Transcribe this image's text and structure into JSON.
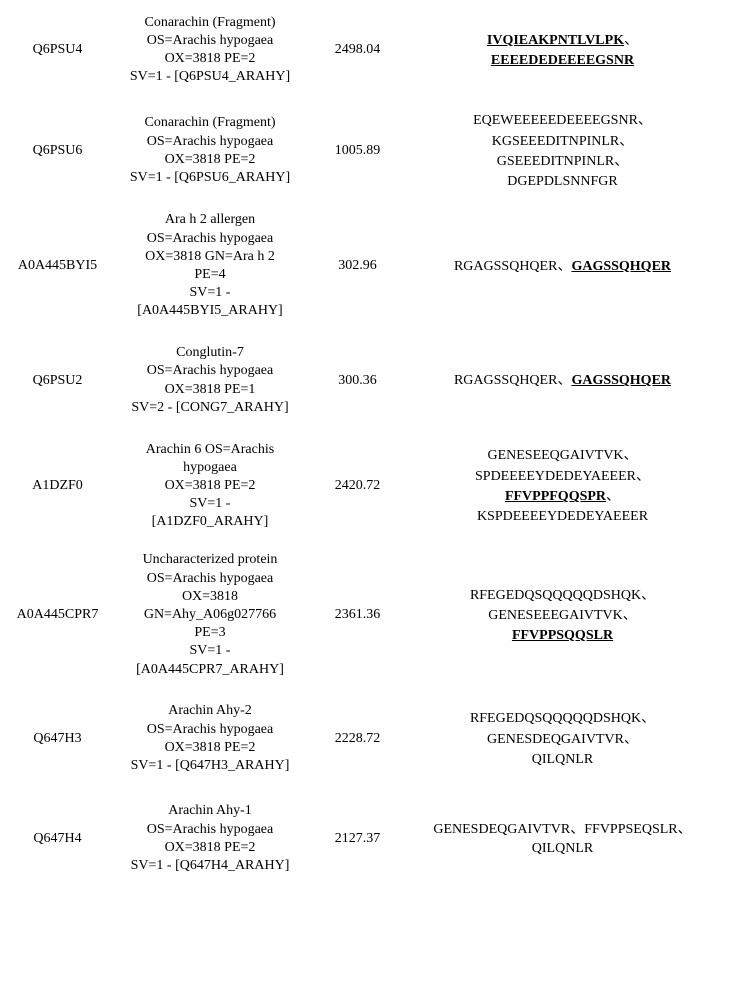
{
  "rows": [
    {
      "accession": "Q6PSU4",
      "description": "Conarachin (Fragment)\nOS=Arachis hypogaea\nOX=3818 PE=2\nSV=1 - [Q6PSU4_ARAHY]",
      "value": "2498.04",
      "peptides": [
        {
          "text": "IVQIEAKPNTLVLPK",
          "emphasized": true
        },
        {
          "text": "EEEEDEDEEEEGSNR",
          "emphasized": true
        }
      ]
    },
    {
      "accession": "Q6PSU6",
      "description": "Conarachin (Fragment)\nOS=Arachis hypogaea\nOX=3818 PE=2\nSV=1 - [Q6PSU6_ARAHY]",
      "value": "1005.89",
      "peptides": [
        {
          "text": "EQEWEEEEEDEEEEGSNR",
          "emphasized": false
        },
        {
          "text": "KGSEEEDITNPINLR",
          "emphasized": false
        },
        {
          "text": "GSEEEDITNPINLR",
          "emphasized": false
        },
        {
          "text": "DGEPDLSNNFGR",
          "emphasized": false
        }
      ]
    },
    {
      "accession": "A0A445BYI5",
      "description": "Ara h 2 allergen\nOS=Arachis hypogaea\nOX=3818 GN=Ara h 2\nPE=4\nSV=1 -\n[A0A445BYI5_ARAHY]",
      "value": "302.96",
      "peptides": [
        {
          "text": "RGAGSSQHQER",
          "emphasized": false
        },
        {
          "text": "GAGSSQHQER",
          "emphasized": true
        }
      ]
    },
    {
      "accession": "Q6PSU2",
      "description": "Conglutin-7\nOS=Arachis hypogaea\nOX=3818 PE=1\nSV=2 - [CONG7_ARAHY]",
      "value": "300.36",
      "peptides": [
        {
          "text": "RGAGSSQHQER",
          "emphasized": false
        },
        {
          "text": "GAGSSQHQER",
          "emphasized": true
        }
      ]
    },
    {
      "accession": "A1DZF0",
      "description": "Arachin 6 OS=Arachis\nhypogaea\nOX=3818 PE=2\nSV=1 -\n[A1DZF0_ARAHY]",
      "value": "2420.72",
      "peptides": [
        {
          "text": "GENESEEQGAIVTVK",
          "emphasized": false
        },
        {
          "text": "SPDEEEEYDEDEYAEEER",
          "emphasized": false
        },
        {
          "text": "FFVPPFQQSPR",
          "emphasized": true
        },
        {
          "text": "KSPDEEEEYDEDEYAEEER",
          "emphasized": false
        }
      ]
    },
    {
      "accession": "A0A445CPR7",
      "description": "Uncharacterized protein\nOS=Arachis hypogaea\nOX=3818\nGN=Ahy_A06g027766\nPE=3\nSV=1 -\n[A0A445CPR7_ARAHY]",
      "value": "2361.36",
      "peptides": [
        {
          "text": "RFEGEDQSQQQQQDSHQK",
          "emphasized": false
        },
        {
          "text": "GENESEEEGAIVTVK",
          "emphasized": false
        },
        {
          "text": "FFVPPSQQSLR",
          "emphasized": true
        }
      ]
    },
    {
      "accession": "Q647H3",
      "description": "Arachin Ahy-2\nOS=Arachis hypogaea\nOX=3818 PE=2\nSV=1 - [Q647H3_ARAHY]",
      "value": "2228.72",
      "peptides": [
        {
          "text": "RFEGEDQSQQQQQDSHQK",
          "emphasized": false
        },
        {
          "text": "GENESDEQGAIVTVR",
          "emphasized": false
        },
        {
          "text": "QILQNLR",
          "emphasized": false
        }
      ]
    },
    {
      "accession": "Q647H4",
      "description": "Arachin Ahy-1\nOS=Arachis hypogaea\nOX=3818 PE=2\nSV=1 - [Q647H4_ARAHY]",
      "value": "2127.37",
      "peptides": [
        {
          "text": "GENESDEQGAIVTVR",
          "emphasized": false
        },
        {
          "text": "FFVPPSEQSLR",
          "emphasized": false
        },
        {
          "text": "QILQNLR",
          "emphasized": false
        }
      ]
    }
  ],
  "separator": "、",
  "styling": {
    "background_color": "#ffffff",
    "text_color": "#000000",
    "font_family": "Times New Roman",
    "font_size": 14,
    "emphasized_weight": "bold",
    "emphasized_decoration": "underline"
  }
}
